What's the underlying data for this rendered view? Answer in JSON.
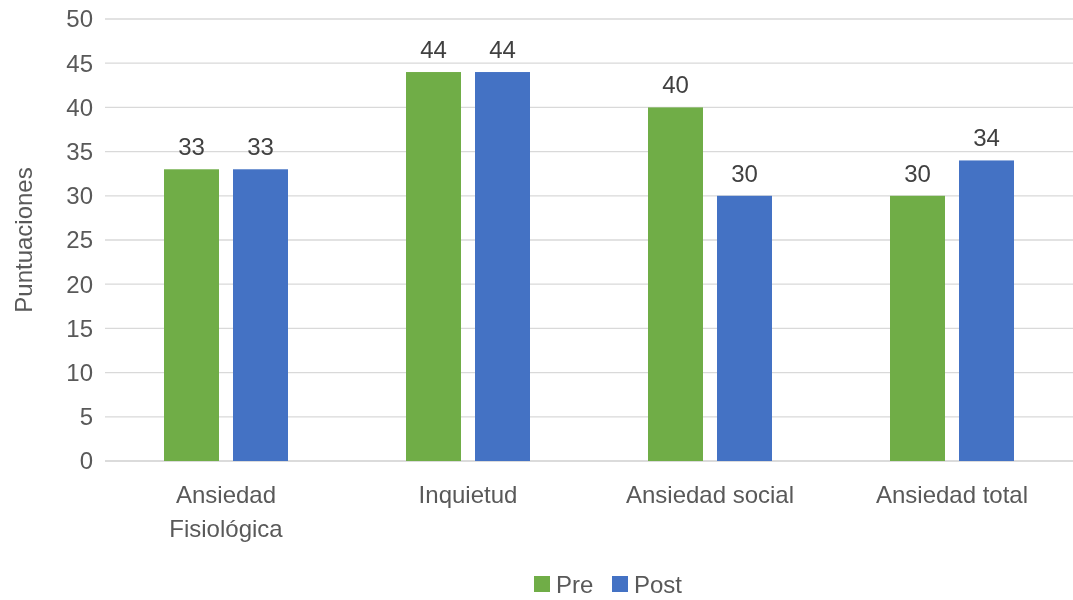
{
  "chart_data": {
    "type": "bar",
    "ylabel": "Puntuaciones",
    "categories": [
      "Ansiedad Fisiológica",
      "Inquietud",
      "Ansiedad social",
      "Ansiedad total"
    ],
    "series": [
      {
        "name": "Pre",
        "color": "#70ad47",
        "values": [
          33,
          44,
          40,
          30
        ]
      },
      {
        "name": "Post",
        "color": "#4472c4",
        "values": [
          33,
          44,
          30,
          34
        ]
      }
    ],
    "ylim": [
      0,
      50
    ],
    "yticks": [
      0,
      5,
      10,
      15,
      20,
      25,
      30,
      35,
      40,
      45,
      50
    ],
    "grid": "y",
    "legend": "bottom",
    "data_labels": true
  }
}
